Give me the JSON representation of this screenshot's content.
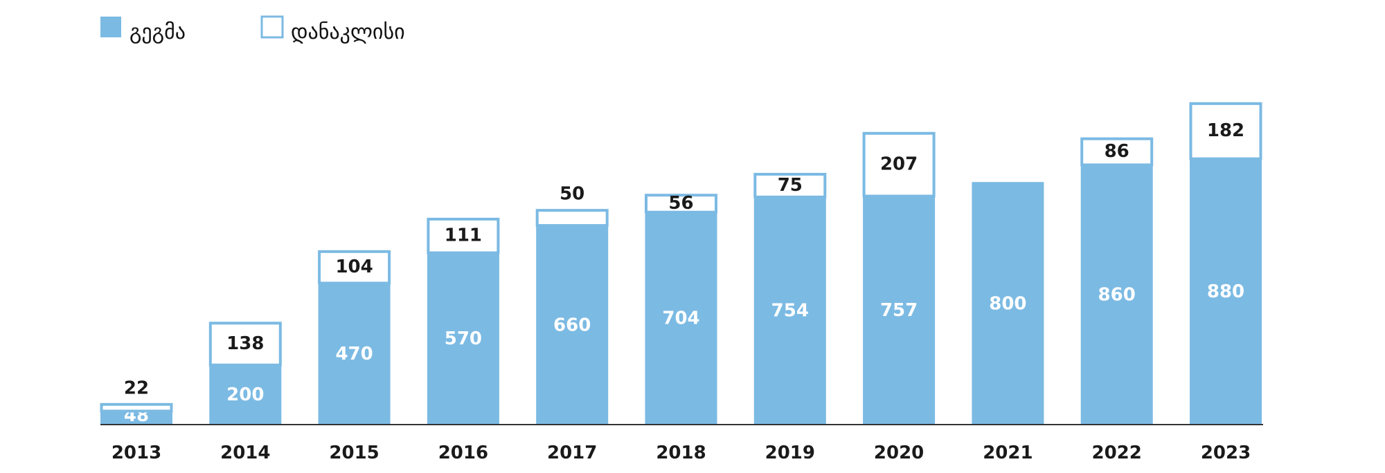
{
  "chart_data": {
    "type": "bar",
    "stacked": true,
    "categories": [
      "2013",
      "2014",
      "2015",
      "2016",
      "2017",
      "2018",
      "2019",
      "2020",
      "2021",
      "2022",
      "2023"
    ],
    "series": [
      {
        "name": "გეგმა",
        "values": [
          48,
          200,
          470,
          570,
          660,
          704,
          754,
          757,
          800,
          860,
          880
        ],
        "color": "#7bbae3"
      },
      {
        "name": "დანაკლისი",
        "values": [
          22,
          138,
          104,
          111,
          50,
          56,
          75,
          207,
          null,
          86,
          182
        ],
        "color": "#ffffff",
        "stroke": "#7bbae3"
      }
    ],
    "title": "",
    "xlabel": "",
    "ylabel": "",
    "ylim": [
      0,
      1100
    ],
    "legend": "top-left",
    "grid": false,
    "colors": {
      "axis": "#333333"
    }
  }
}
